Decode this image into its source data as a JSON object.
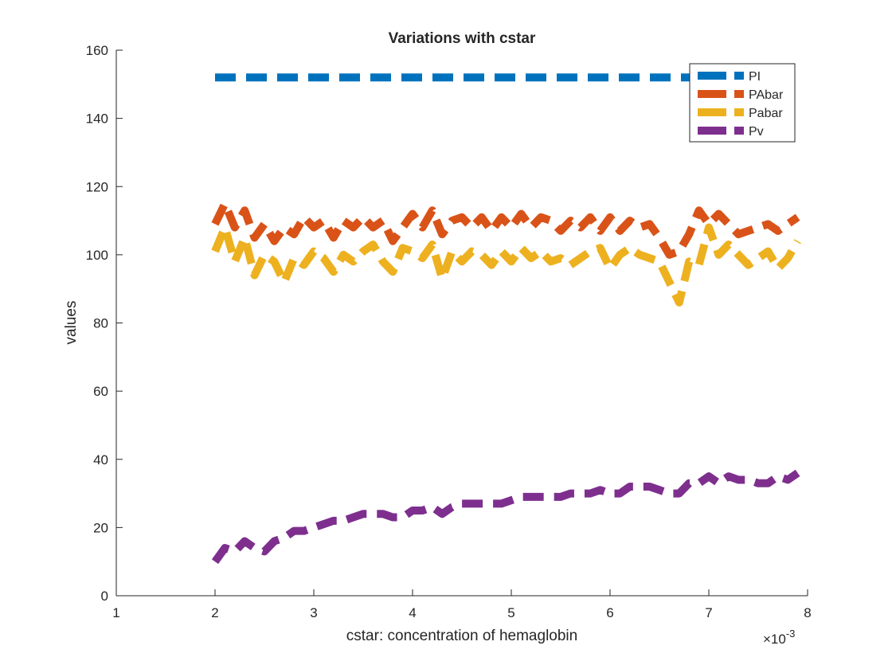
{
  "chart_data": {
    "type": "line",
    "title": "Variations with cstar",
    "xlabel": "cstar: concentration of hemaglobin",
    "ylabel": "values",
    "x_exponent_label": "×10",
    "x_exponent_power": "-3",
    "xlim": [
      1,
      8
    ],
    "ylim": [
      0,
      160
    ],
    "xticks": [
      "1",
      "2",
      "3",
      "4",
      "5",
      "6",
      "7",
      "8"
    ],
    "yticks": [
      "0",
      "20",
      "40",
      "60",
      "80",
      "100",
      "120",
      "140",
      "160"
    ],
    "grid": false,
    "legend_position": "top-right",
    "x": [
      2.0,
      2.1,
      2.2,
      2.3,
      2.4,
      2.5,
      2.6,
      2.7,
      2.8,
      2.9,
      3.0,
      3.1,
      3.2,
      3.3,
      3.4,
      3.5,
      3.6,
      3.7,
      3.8,
      3.9,
      4.0,
      4.1,
      4.2,
      4.3,
      4.4,
      4.5,
      4.6,
      4.7,
      4.8,
      4.9,
      5.0,
      5.1,
      5.2,
      5.3,
      5.4,
      5.5,
      5.6,
      5.7,
      5.8,
      5.9,
      6.0,
      6.1,
      6.2,
      6.3,
      6.4,
      6.5,
      6.6,
      6.7,
      6.8,
      6.9,
      7.0,
      7.1,
      7.2,
      7.3,
      7.4,
      7.5,
      7.6,
      7.7,
      7.8,
      7.9
    ],
    "series": [
      {
        "name": "PI",
        "color": "#0072BD",
        "values": [
          152,
          152,
          152,
          152,
          152,
          152,
          152,
          152,
          152,
          152,
          152,
          152,
          152,
          152,
          152,
          152,
          152,
          152,
          152,
          152,
          152,
          152,
          152,
          152,
          152,
          152,
          152,
          152,
          152,
          152,
          152,
          152,
          152,
          152,
          152,
          152,
          152,
          152,
          152,
          152,
          152,
          152,
          152,
          152,
          152,
          152,
          152,
          152,
          152,
          152,
          152,
          152,
          152,
          152,
          152,
          152,
          152,
          152,
          152,
          152
        ]
      },
      {
        "name": "PAbar",
        "color": "#D95319",
        "values": [
          109,
          115,
          108,
          113,
          105,
          109,
          104,
          108,
          106,
          111,
          108,
          110,
          105,
          110,
          108,
          111,
          108,
          110,
          104,
          108,
          112,
          108,
          113,
          106,
          110,
          111,
          108,
          111,
          107,
          111,
          108,
          112,
          108,
          111,
          110,
          107,
          110,
          108,
          111,
          107,
          111,
          107,
          110,
          108,
          109,
          105,
          100,
          101,
          106,
          113,
          109,
          112,
          109,
          106,
          107,
          108,
          109,
          107,
          109,
          111
        ]
      },
      {
        "name": "Pabar",
        "color": "#EDB120",
        "values": [
          101,
          108,
          98,
          105,
          94,
          100,
          98,
          92,
          99,
          97,
          101,
          99,
          95,
          100,
          98,
          101,
          103,
          98,
          95,
          102,
          101,
          99,
          103,
          93,
          101,
          98,
          101,
          100,
          97,
          101,
          98,
          102,
          99,
          101,
          98,
          99,
          97,
          99,
          101,
          102,
          96,
          100,
          102,
          100,
          99,
          98,
          92,
          86,
          98,
          97,
          108,
          100,
          103,
          100,
          97,
          99,
          101,
          96,
          99,
          104
        ]
      },
      {
        "name": "Pv",
        "color": "#7E2F8E",
        "values": [
          10,
          14,
          13,
          16,
          14,
          13,
          16,
          17,
          19,
          19,
          20,
          21,
          22,
          22,
          23,
          24,
          24,
          24,
          23,
          23,
          25,
          25,
          26,
          24,
          26,
          27,
          27,
          27,
          27,
          27,
          28,
          29,
          29,
          29,
          29,
          29,
          30,
          30,
          30,
          31,
          30,
          30,
          32,
          32,
          32,
          31,
          30,
          30,
          33,
          33,
          35,
          33,
          35,
          34,
          34,
          33,
          33,
          35,
          34,
          36
        ]
      }
    ]
  }
}
